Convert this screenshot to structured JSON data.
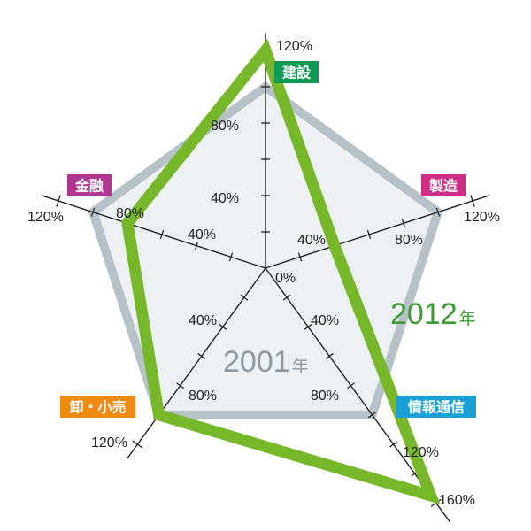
{
  "chart_data": {
    "type": "radar",
    "title": "",
    "categories": [
      "建設",
      "製造",
      "情報通信",
      "卸・小売",
      "金融"
    ],
    "category_colors": [
      "#0e9a55",
      "#cf2d86",
      "#1aa0d6",
      "#ef8a13",
      "#b0378f"
    ],
    "axis_max": [
      120,
      120,
      160,
      120,
      120
    ],
    "tick_labels": {
      "建設": [
        "0%",
        "40%",
        "80%",
        "120%"
      ],
      "製造": [
        "40%",
        "80%",
        "120%"
      ],
      "情報通信": [
        "40%",
        "80%",
        "120%",
        "160%"
      ],
      "卸・小売": [
        "40%",
        "80%",
        "120%"
      ],
      "金融": [
        "40%",
        "80%",
        "120%"
      ]
    },
    "series": [
      {
        "name": "2001",
        "suffix": "年",
        "color": "#b7c1c8",
        "fill": "#edf1f3",
        "values": [
          100,
          100,
          100,
          100,
          100
        ]
      },
      {
        "name": "2012",
        "suffix": "年",
        "color": "#76b82a",
        "values": [
          120,
          40,
          155,
          100,
          80
        ]
      }
    ]
  }
}
